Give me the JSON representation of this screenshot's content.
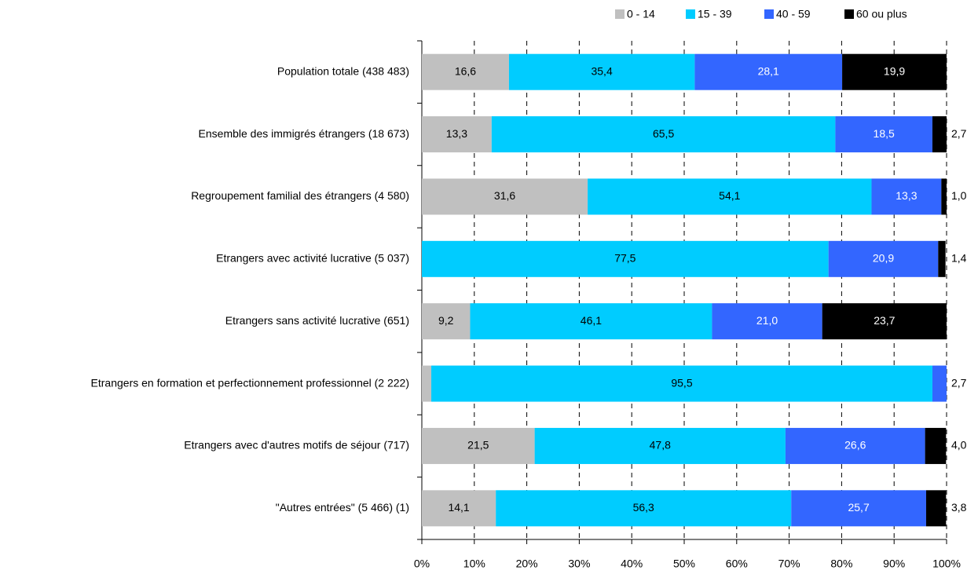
{
  "chart_data": {
    "type": "stacked_bar_horizontal",
    "categories": [
      "Population totale (438 483)",
      "Ensemble des immigrés étrangers (18 673)",
      "Regroupement familial des étrangers (4 580)",
      "Etrangers avec activité lucrative (5 037)",
      "Etrangers sans activité lucrative (651)",
      "Etrangers en formation et perfectionnement professionnel (2 222)",
      "Etrangers avec d'autres motifs de séjour (717)",
      "\"Autres entrées\"  (5 466) (1)"
    ],
    "series": [
      {
        "name": "0 - 14",
        "color": "#c0c0c0",
        "values": [
          16.6,
          13.3,
          31.6,
          0,
          9.2,
          1.8,
          21.5,
          14.1
        ],
        "value_labels": [
          "16,6",
          "13,3",
          "31,6",
          null,
          "9,2",
          "1,8",
          "21,5",
          "14,1"
        ]
      },
      {
        "name": "15 - 39",
        "color": "#00ccff",
        "values": [
          35.4,
          65.5,
          54.1,
          77.5,
          46.1,
          95.5,
          47.8,
          56.3
        ],
        "value_labels": [
          "35,4",
          "65,5",
          "54,1",
          "77,5",
          "46,1",
          "95,5",
          "47,8",
          "56,3"
        ]
      },
      {
        "name": "40 - 59",
        "color": "#3366ff",
        "values": [
          28.1,
          18.5,
          13.3,
          20.9,
          21.0,
          2.7,
          26.6,
          25.7
        ],
        "value_labels": [
          "28,1",
          "18,5",
          "13,3",
          "20,9",
          "21,0",
          "2,7",
          "26,6",
          "25,7"
        ]
      },
      {
        "name": "60 ou plus",
        "color": "#000000",
        "values": [
          19.9,
          2.7,
          1.0,
          1.4,
          23.7,
          0,
          4.0,
          3.8
        ],
        "value_labels": [
          "19,9",
          "2,7",
          "1,0",
          "1,4",
          "23,7",
          null,
          "4,0",
          "3,8"
        ]
      }
    ],
    "xlim": [
      0,
      100
    ],
    "xticks": [
      {
        "value": 0,
        "label": "0%"
      },
      {
        "value": 10,
        "label": "10%"
      },
      {
        "value": 20,
        "label": "20%"
      },
      {
        "value": 30,
        "label": "30%"
      },
      {
        "value": 40,
        "label": "40%"
      },
      {
        "value": 50,
        "label": "50%"
      },
      {
        "value": 60,
        "label": "60%"
      },
      {
        "value": 70,
        "label": "70%"
      },
      {
        "value": 80,
        "label": "80%"
      },
      {
        "value": 90,
        "label": "90%"
      },
      {
        "value": 100,
        "label": "100%"
      }
    ],
    "grid": true,
    "legend": "top-right"
  }
}
